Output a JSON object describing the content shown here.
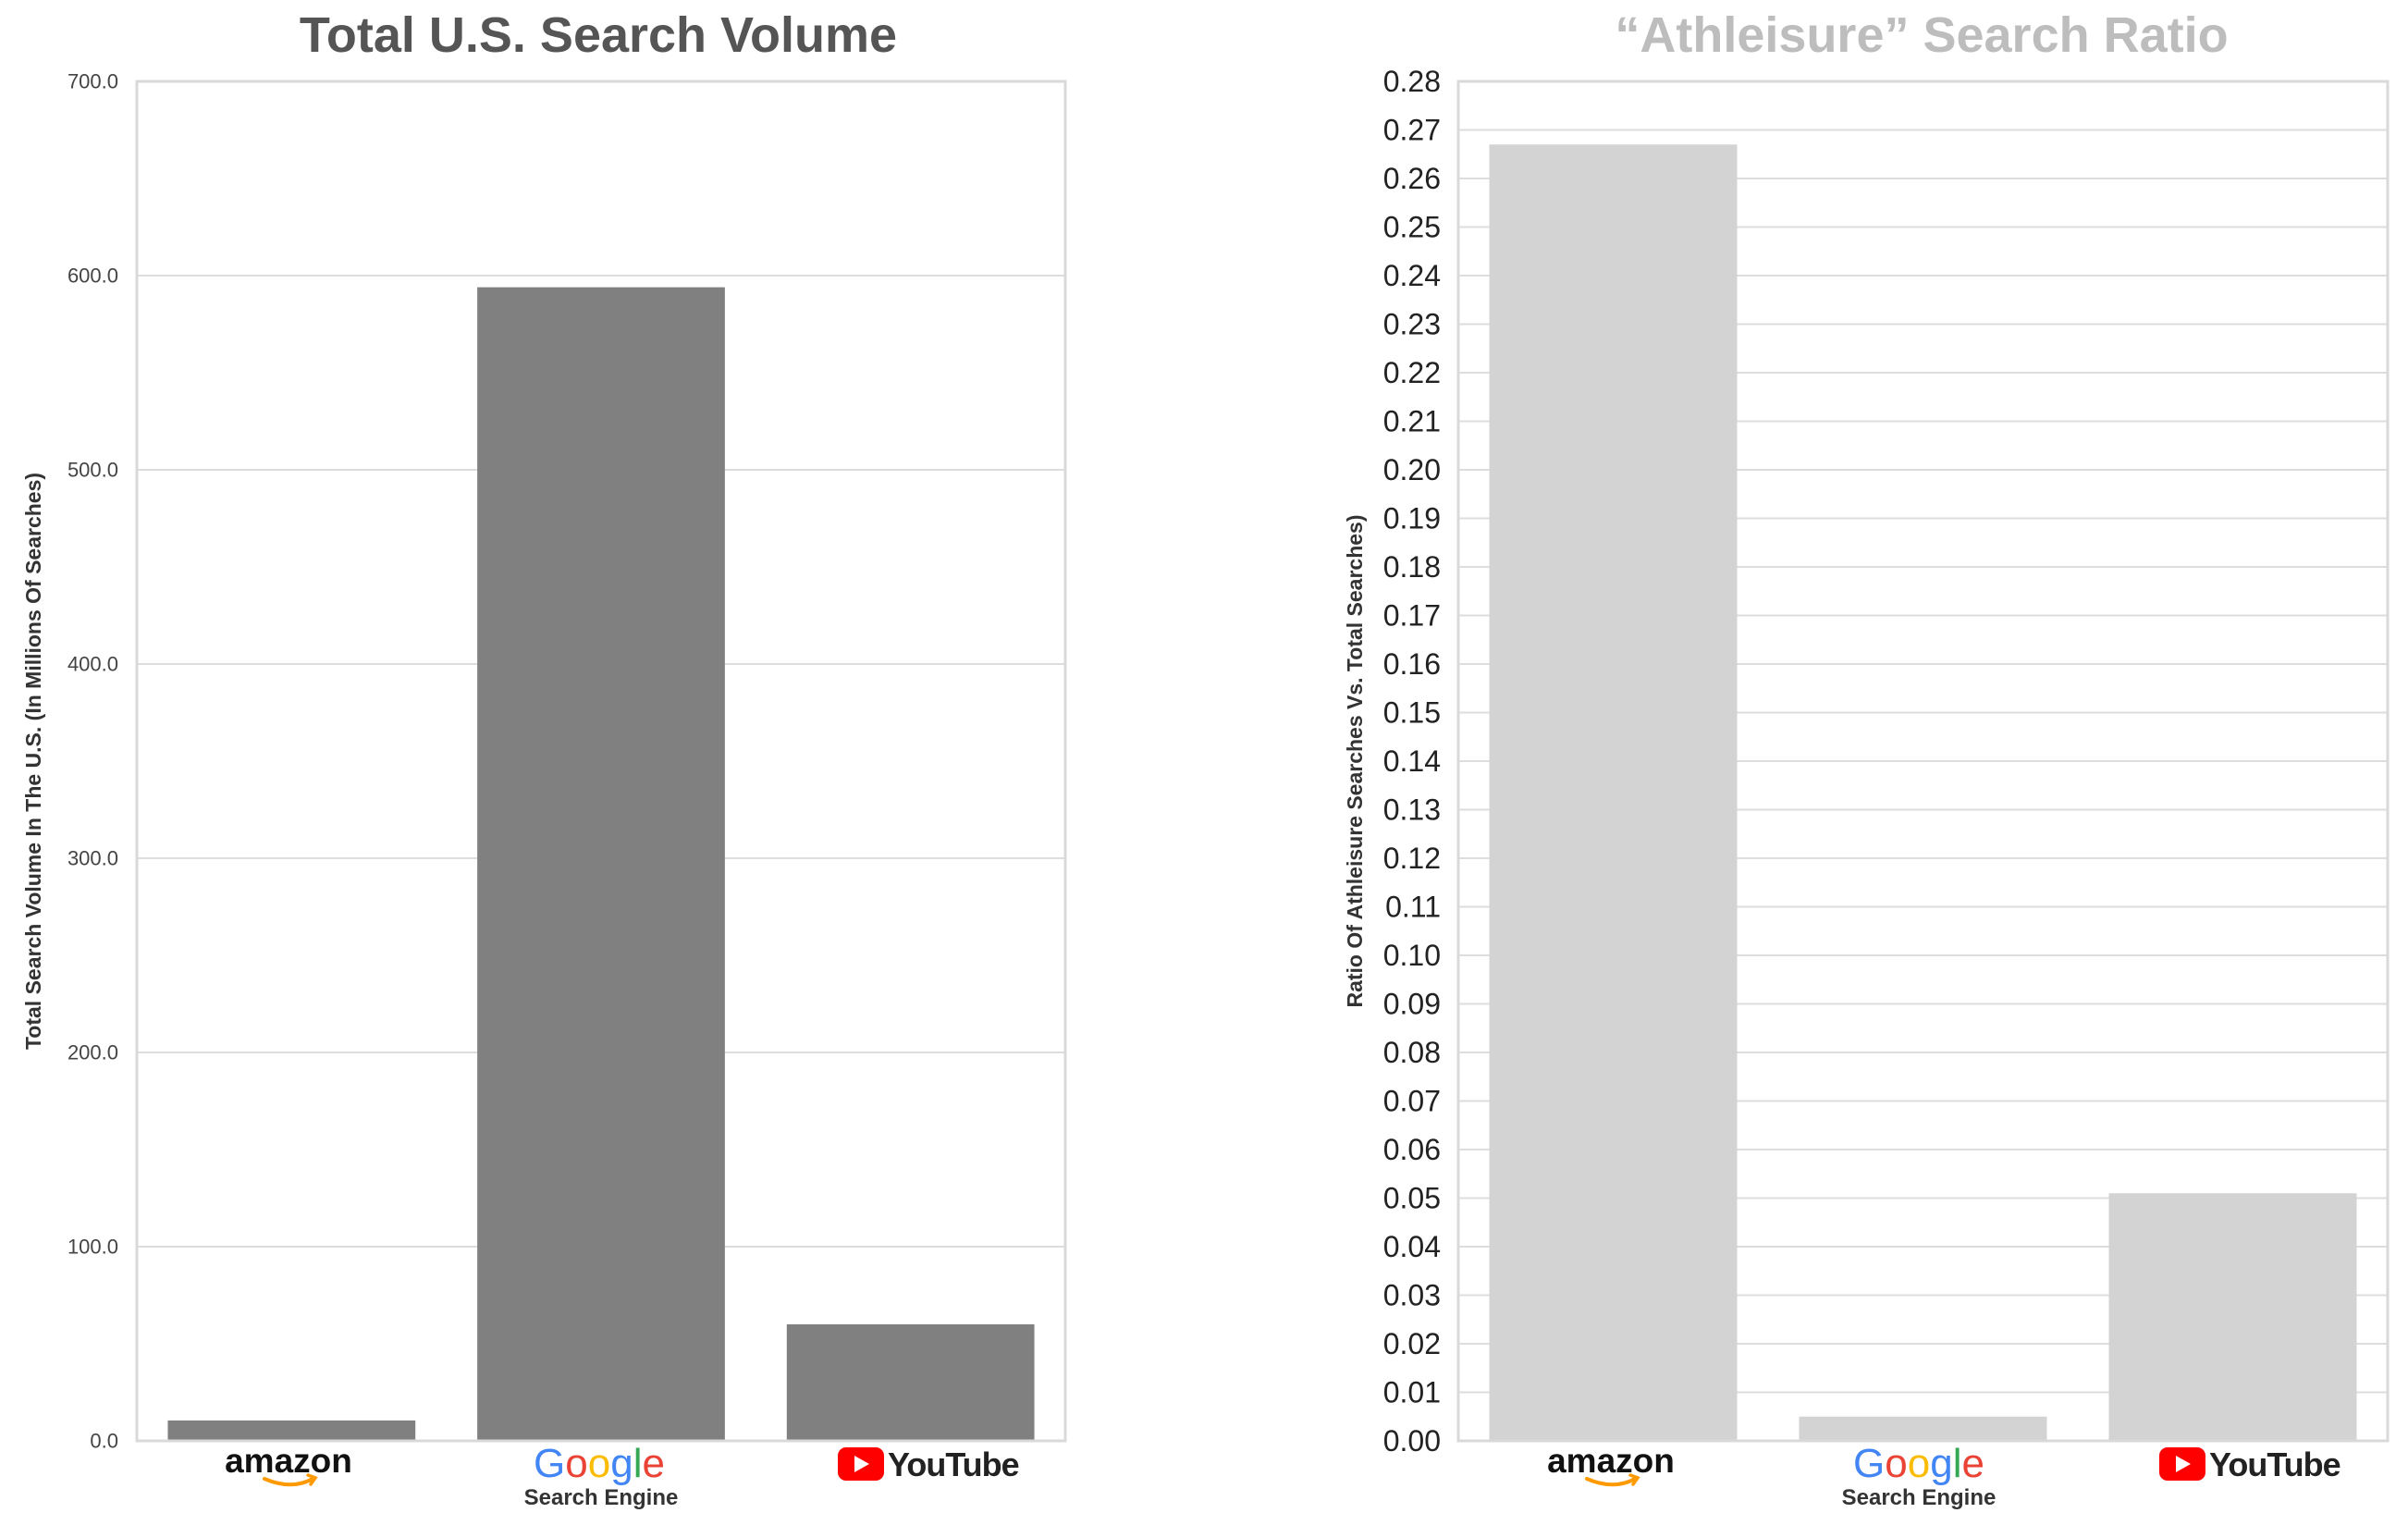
{
  "charts": [
    {
      "title": "Total U.S. Search Volume",
      "title_color": "#555555",
      "ylabel": "Total Search Volume In The U.S. (In Millions Of Searches)",
      "xlabel": "Search Engine",
      "bar_color": "#808080"
    },
    {
      "title": "“Athleisure” Search Ratio",
      "title_color": "#bdbdbd",
      "ylabel": "Ratio Of Athleisure Searches Vs. Total Searches)",
      "xlabel": "Search Engine",
      "bar_color": "#d3d3d3"
    }
  ],
  "logos": {
    "amazon": "amazon",
    "google": [
      "G",
      "o",
      "o",
      "g",
      "l",
      "e"
    ],
    "google_colors": [
      "#4285F4",
      "#EA4335",
      "#FBBC05",
      "#4285F4",
      "#34A853",
      "#EA4335"
    ],
    "youtube": "YouTube",
    "amazon_smile_color": "#FF9900",
    "youtube_red": "#FF0000"
  },
  "chart_data": [
    {
      "type": "bar",
      "title": "Total U.S. Search Volume",
      "xlabel": "Search Engine",
      "ylabel": "Total Search Volume In The U.S. (In Millions Of Searches)",
      "categories": [
        "amazon",
        "Google",
        "YouTube"
      ],
      "values": [
        10.5,
        594.0,
        60.0
      ],
      "ylim": [
        0,
        700
      ],
      "yticks": [
        "0.0",
        "100.0",
        "200.0",
        "300.0",
        "400.0",
        "500.0",
        "600.0",
        "700.0"
      ],
      "grid": true
    },
    {
      "type": "bar",
      "title": "“Athleisure” Search Ratio",
      "xlabel": "Search Engine",
      "ylabel": "Ratio Of Athleisure Searches Vs. Total Searches)",
      "categories": [
        "amazon",
        "Google",
        "YouTube"
      ],
      "values": [
        0.267,
        0.005,
        0.051
      ],
      "ylim": [
        0,
        0.28
      ],
      "yticks": [
        "0.00",
        "0.01",
        "0.02",
        "0.03",
        "0.04",
        "0.05",
        "0.06",
        "0.07",
        "0.08",
        "0.09",
        "0.10",
        "0.11",
        "0.12",
        "0.13",
        "0.14",
        "0.15",
        "0.16",
        "0.17",
        "0.18",
        "0.19",
        "0.20",
        "0.21",
        "0.22",
        "0.23",
        "0.24",
        "0.25",
        "0.26",
        "0.27",
        "0.28"
      ],
      "grid": true
    }
  ]
}
